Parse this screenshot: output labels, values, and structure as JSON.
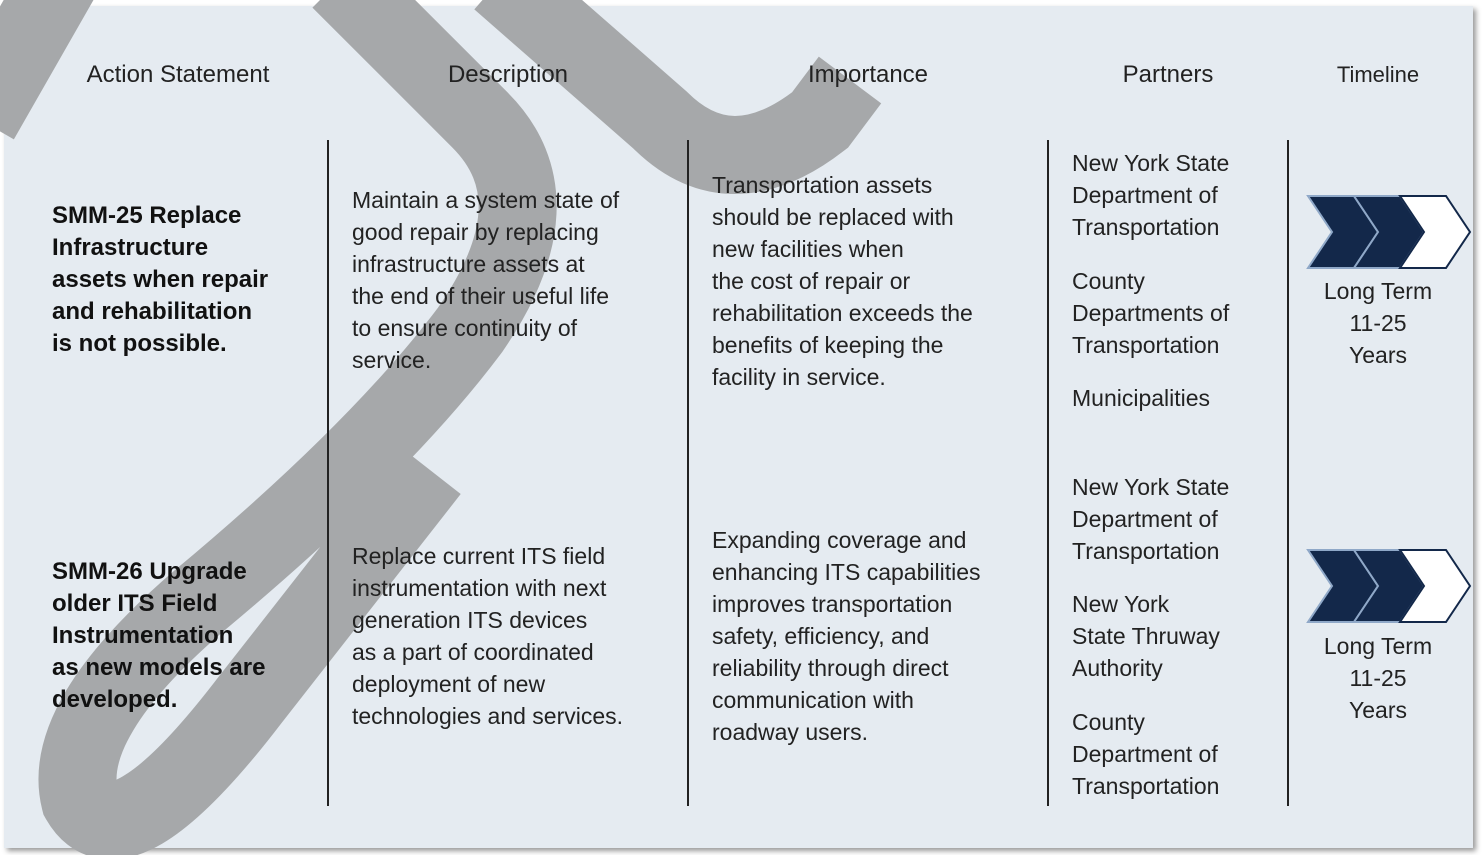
{
  "header": {
    "columns": [
      "Action Statement",
      "Description",
      "Importance",
      "Partners",
      "Timeline"
    ]
  },
  "rows": [
    {
      "action": [
        "SMM-25 Replace",
        "Infrastructure",
        "assets when repair",
        "and rehabilitation",
        "is not possible."
      ],
      "description": [
        "Maintain a system state of",
        "good repair by replacing",
        "infrastructure assets at",
        "the end of their useful life",
        "to ensure continuity of",
        "service."
      ],
      "importance": [
        "Transportation assets",
        "should be replaced with",
        "new facilities when",
        "the cost of repair or",
        "rehabilitation exceeds the",
        "benefits of keeping the",
        "facility in service."
      ],
      "partners": [
        [
          "New York State",
          "Department of",
          "Transportation"
        ],
        [
          "County",
          "Departments of",
          "Transportation"
        ],
        [
          "Municipalities"
        ]
      ],
      "timeline": [
        "Long Term",
        "11-25",
        "Years"
      ]
    },
    {
      "action": [
        "SMM-26 Upgrade",
        "older ITS Field",
        "Instrumentation",
        "as new models are",
        "developed."
      ],
      "description": [
        "Replace current ITS field",
        "instrumentation with next",
        "generation ITS devices",
        "as a part of coordinated",
        "deployment of new",
        "technologies and services."
      ],
      "importance": [
        "Expanding coverage and",
        "enhancing ITS capabilities",
        "improves transportation",
        "safety, efficiency, and",
        "reliability through direct",
        "communication with",
        "roadway users."
      ],
      "partners": [
        [
          "New York State",
          "Department of",
          "Transportation"
        ],
        [
          "New York",
          "State Thruway",
          "Authority"
        ],
        [
          "County",
          "Department of",
          "Transportation"
        ]
      ],
      "timeline": [
        "Long Term",
        "11-25",
        "Years"
      ]
    }
  ]
}
